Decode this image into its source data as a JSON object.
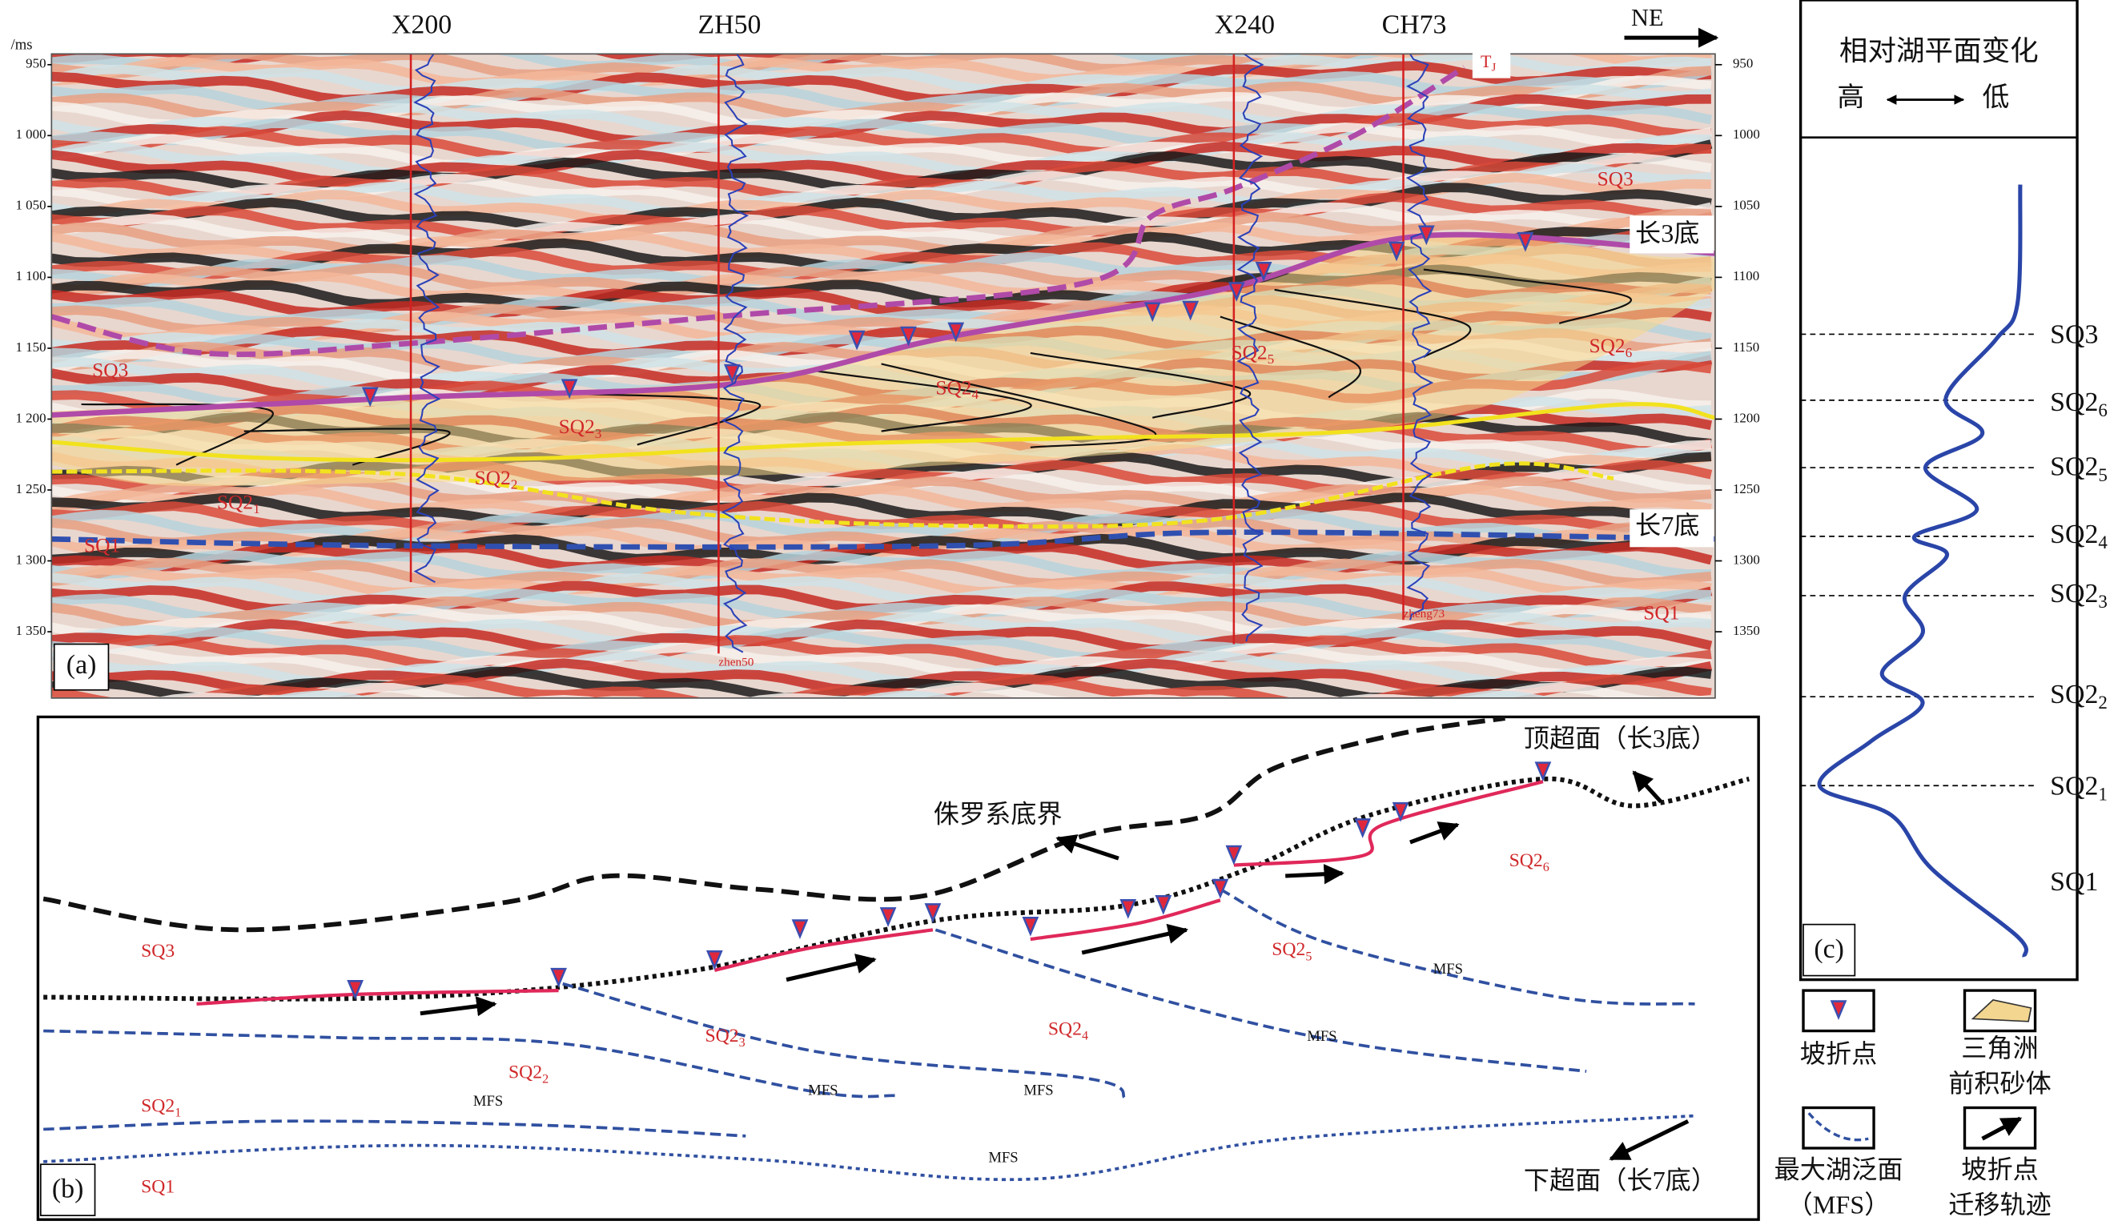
{
  "panel_a": {
    "label": "(a)",
    "unit": "/ms",
    "direction": "NE",
    "wells": [
      "X200",
      "ZH50",
      "X240",
      "CH73"
    ],
    "well_tags": [
      "zhen50",
      "zheng73"
    ],
    "left_ticks": [
      "950",
      "1 000",
      "1 050",
      "1 100",
      "1 150",
      "1 200",
      "1 250",
      "1 300",
      "1 350"
    ],
    "right_ticks": [
      "950",
      "1000",
      "1050",
      "1100",
      "1150",
      "1200",
      "1250",
      "1300",
      "1350"
    ],
    "horizon_top": "长3底",
    "horizon_bottom": "长7底",
    "horizon_tj": {
      "base": "T",
      "sub": "J"
    },
    "sequences": [
      {
        "base": "SQ3"
      },
      {
        "base": "SQ3"
      },
      {
        "base": "SQ1"
      },
      {
        "base": "SQ1"
      },
      {
        "base": "SQ2",
        "sub": "1"
      },
      {
        "base": "SQ2",
        "sub": "2"
      },
      {
        "base": "SQ2",
        "sub": "3"
      },
      {
        "base": "SQ2",
        "sub": "4"
      },
      {
        "base": "SQ2",
        "sub": "5"
      },
      {
        "base": "SQ2",
        "sub": "6"
      }
    ]
  },
  "panel_b": {
    "label": "(b)",
    "top_surface": "顶超面（长3底）",
    "jurassic_base": "侏罗系底界",
    "bottom_surface": "下超面（长7底）",
    "mfs_labels": [
      "MFS",
      "MFS",
      "MFS",
      "MFS",
      "MFS",
      "MFS"
    ],
    "sequences": [
      {
        "base": "SQ3"
      },
      {
        "base": "SQ1"
      },
      {
        "base": "SQ2",
        "sub": "1"
      },
      {
        "base": "SQ2",
        "sub": "2"
      },
      {
        "base": "SQ2",
        "sub": "3"
      },
      {
        "base": "SQ2",
        "sub": "4"
      },
      {
        "base": "SQ2",
        "sub": "5"
      },
      {
        "base": "SQ2",
        "sub": "6"
      }
    ]
  },
  "panel_c": {
    "label": "(c)",
    "title": "相对湖平面变化",
    "high": "高",
    "low": "低",
    "sequences": [
      {
        "base": "SQ3"
      },
      {
        "base": "SQ2",
        "sub": "6"
      },
      {
        "base": "SQ2",
        "sub": "5"
      },
      {
        "base": "SQ2",
        "sub": "4"
      },
      {
        "base": "SQ2",
        "sub": "3"
      },
      {
        "base": "SQ2",
        "sub": "2"
      },
      {
        "base": "SQ2",
        "sub": "1"
      },
      {
        "base": "SQ1"
      }
    ]
  },
  "legend": {
    "break_point": "坡折点",
    "delta_sand": [
      "三角洲",
      "前积砂体"
    ],
    "mfs": [
      "最大湖泛面",
      "（MFS）"
    ],
    "migration": [
      "坡折点",
      "迁移轨迹"
    ]
  }
}
